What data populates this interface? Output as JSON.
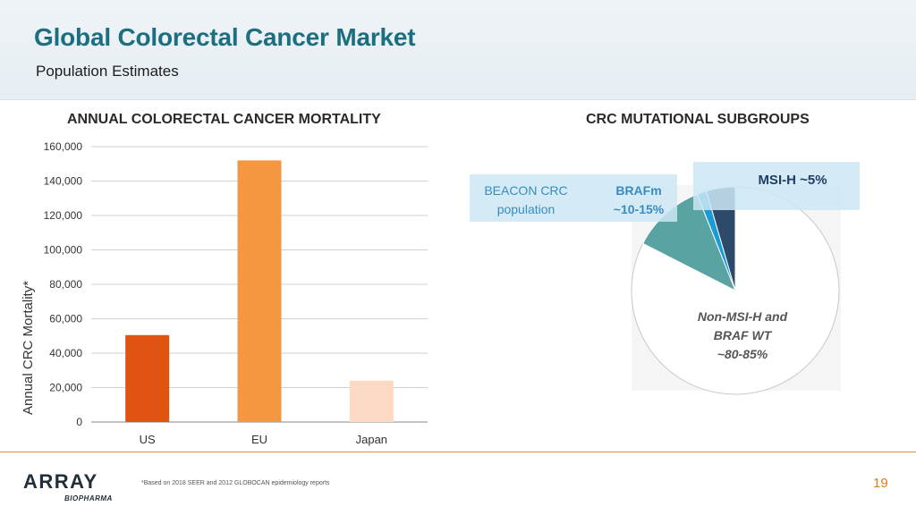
{
  "slide": {
    "title": "Global Colorectal Cancer Market",
    "subtitle": "Population Estimates",
    "page_number": "19",
    "footnote": "*Based on 2018 SEER and 2012 GLOBOCAN epidemiology reports",
    "logo": {
      "name": "ARRAY",
      "tagline": "BIOPHARMA"
    }
  },
  "colors": {
    "title": "#1b6f80",
    "accent_orange": "#e07a1e",
    "bar_us": "#e05412",
    "bar_eu": "#f59640",
    "bar_japan": "#fcd9c2",
    "pie_wt": "#ffffff",
    "pie_brafm": "#5aa3a3",
    "pie_beacon": "#1a9bd7",
    "pie_msih": "#2e4a6a",
    "callout_fill": "#cde8f4"
  },
  "chart_data": [
    {
      "type": "bar",
      "title": "ANNUAL COLORECTAL CANCER MORTALITY",
      "xlabel": "",
      "ylabel": "Annual CRC Mortality*",
      "categories": [
        "US",
        "EU",
        "Japan"
      ],
      "values": [
        50500,
        152000,
        24000
      ],
      "ylim": [
        0,
        160000
      ],
      "yticks": [
        0,
        20000,
        40000,
        60000,
        80000,
        100000,
        120000,
        140000,
        160000
      ],
      "ytick_labels": [
        "0",
        "20,000",
        "40,000",
        "60,000",
        "80,000",
        "100,000",
        "120,000",
        "140,000",
        "160,000"
      ],
      "grid": true,
      "legend": "none"
    },
    {
      "type": "pie",
      "title": "CRC MUTATIONAL SUBGROUPS",
      "slices": [
        {
          "name": "Non-MSI-H and BRAF WT",
          "value": 82.5,
          "label_lines": [
            "Non-MSI-H and",
            "BRAF WT",
            "~80-85%"
          ]
        },
        {
          "name": "BRAFm",
          "value": 11.5,
          "label_lines": [
            "BRAFm",
            "~10-15%"
          ]
        },
        {
          "name": "BEACON CRC population",
          "value": 1.5,
          "label_lines": [
            "BEACON CRC",
            "population"
          ]
        },
        {
          "name": "MSI-H",
          "value": 4.5,
          "label_lines": [
            "MSI-H ~5%"
          ]
        }
      ]
    }
  ]
}
